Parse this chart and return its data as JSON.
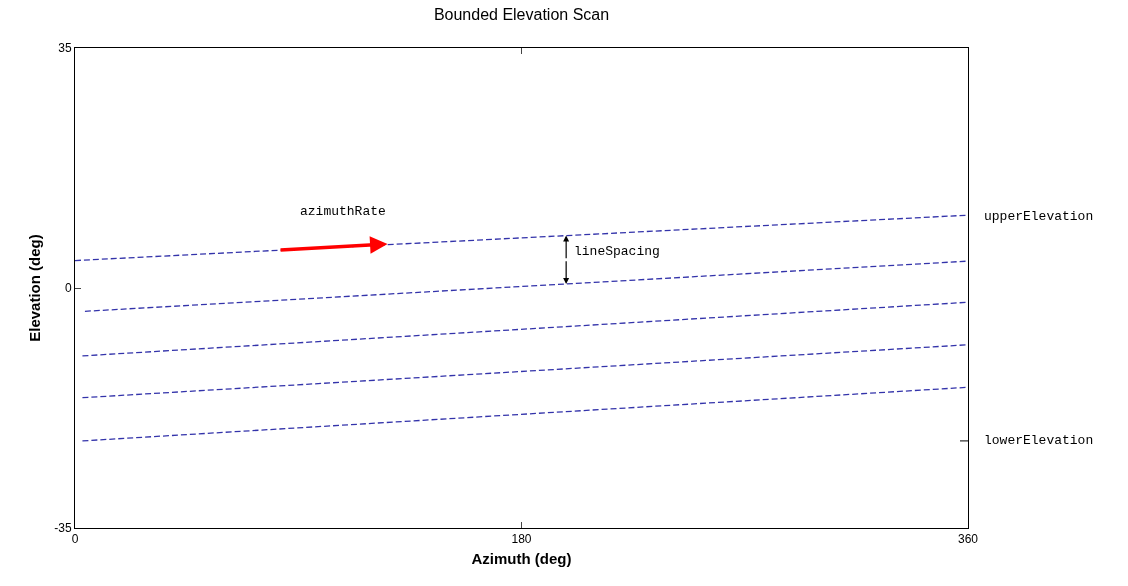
{
  "chart_data": {
    "type": "line",
    "title": "Bounded Elevation Scan",
    "xlabel": "Azimuth (deg)",
    "ylabel": "Elevation (deg)",
    "xlim": [
      0,
      360
    ],
    "xticks": [
      0,
      180,
      360
    ],
    "ylim": [
      -35,
      35
    ],
    "yticks": [
      -35,
      0,
      35
    ],
    "grid": false,
    "marker": "none",
    "line_style": "dashed",
    "series": [
      {
        "color": "#3333aa",
        "x": [
          0,
          359
        ],
        "values": [
          4.0,
          10.6
        ]
      },
      {
        "color": "#3333aa",
        "x": [
          4,
          359
        ],
        "values": [
          -3.4,
          3.9
        ]
      },
      {
        "color": "#3333aa",
        "x": [
          3,
          359
        ],
        "values": [
          -9.9,
          -2.1
        ]
      },
      {
        "color": "#3333aa",
        "x": [
          3,
          359
        ],
        "values": [
          -16.0,
          -8.3
        ]
      },
      {
        "color": "#3333aa",
        "x": [
          3,
          359
        ],
        "values": [
          -22.3,
          -14.5
        ]
      }
    ],
    "annotations": [
      {
        "text": "azimuthRate",
        "x": 126,
        "y": 6.4
      },
      {
        "text": "lineSpacing",
        "x": 198,
        "y": 0.6
      },
      {
        "text": "upperElevation",
        "x": 360,
        "y": 10.5
      },
      "lowerElevation"
    ]
  }
}
